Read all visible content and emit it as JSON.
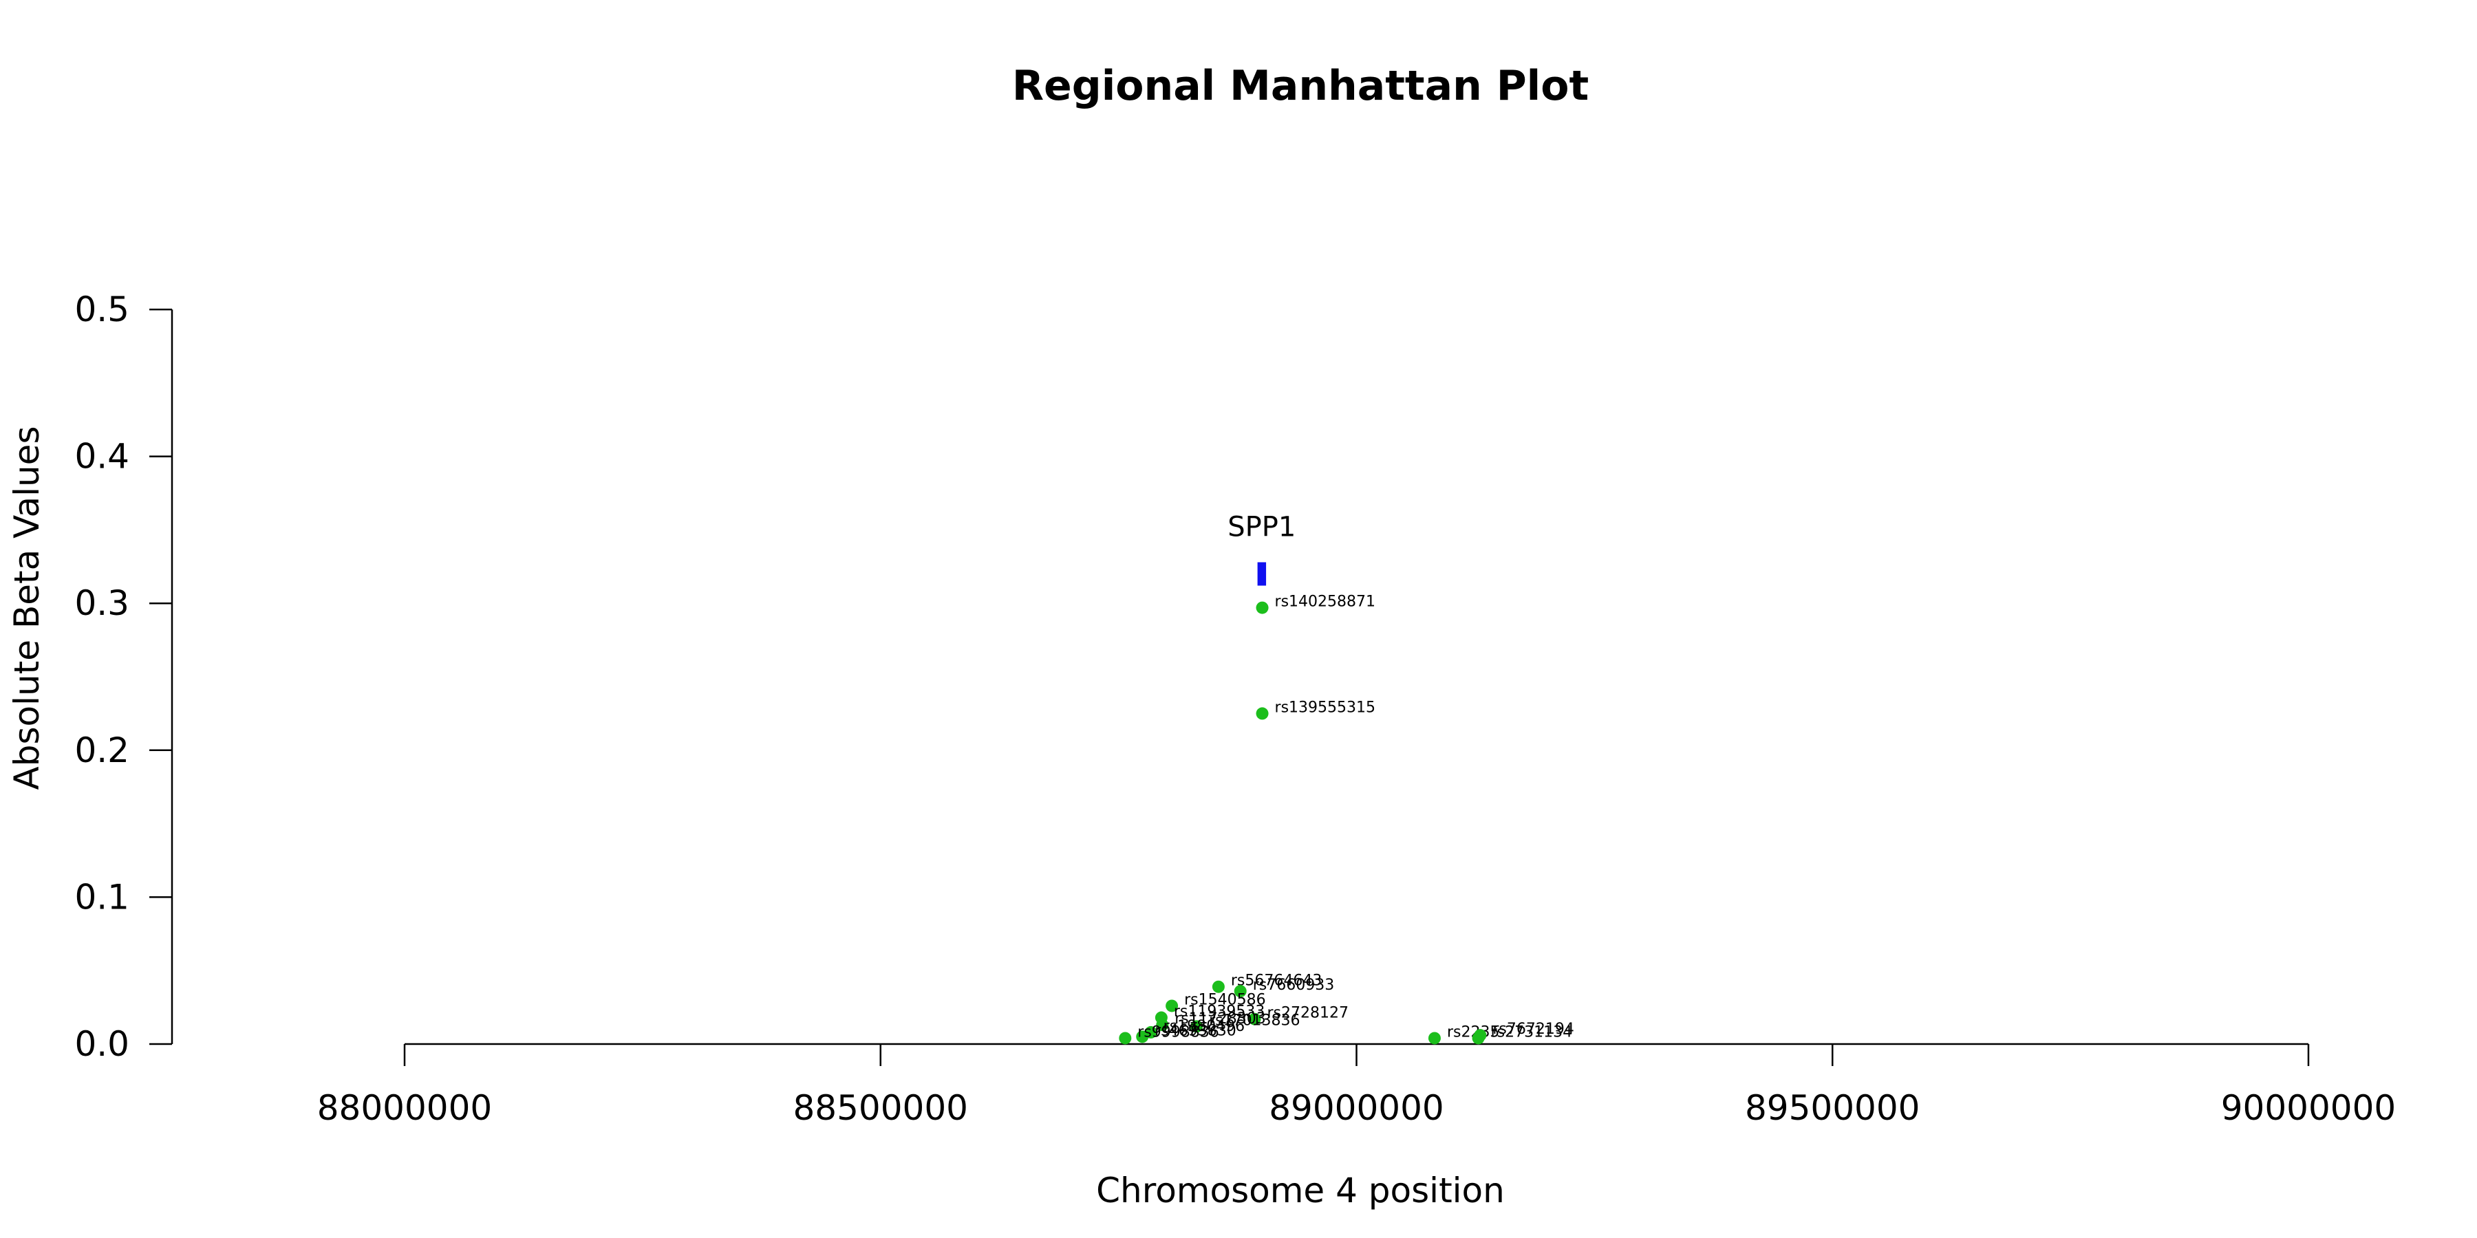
{
  "chart_data": {
    "type": "scatter",
    "title": "Regional Manhattan Plot",
    "xlabel": "Chromosome 4 position",
    "ylabel": "Absolute Beta Values",
    "xlim": [
      88000000,
      90000000
    ],
    "ylim": [
      0,
      0.5
    ],
    "x_ticks": [
      88000000,
      88500000,
      89000000,
      89500000,
      90000000
    ],
    "x_tick_labels": [
      "88000000",
      "88500000",
      "89000000",
      "89500000",
      "90000000"
    ],
    "y_ticks": [
      0,
      0.1,
      0.2,
      0.3,
      0.4,
      0.5
    ],
    "y_tick_labels": [
      "0.0",
      "0.1",
      "0.2",
      "0.3",
      "0.4",
      "0.5"
    ],
    "grid": false,
    "point_color": "#1cbe1c",
    "gene_color": "#1010f0",
    "genes": [
      {
        "name": "SPP1",
        "start": 88896000,
        "end": 88905000,
        "y": 0.32
      }
    ],
    "points": [
      {
        "label": "rs140258871",
        "x": 88901000,
        "y": 0.297
      },
      {
        "label": "rs139555315",
        "x": 88901000,
        "y": 0.225
      },
      {
        "label": "rs56764643",
        "x": 88855000,
        "y": 0.039
      },
      {
        "label": "rs7660933",
        "x": 88878000,
        "y": 0.036
      },
      {
        "label": "rs1540586",
        "x": 88806000,
        "y": 0.026
      },
      {
        "label": "rs11939533",
        "x": 88795000,
        "y": 0.018
      },
      {
        "label": "rs2728127",
        "x": 88893000,
        "y": 0.017
      },
      {
        "label": "rs17013836",
        "x": 88832000,
        "y": 0.012
      },
      {
        "label": "rs11728303",
        "x": 88796000,
        "y": 0.013
      },
      {
        "label": "rs1980496",
        "x": 88784000,
        "y": 0.008
      },
      {
        "label": "rs4693830",
        "x": 88775000,
        "y": 0.005
      },
      {
        "label": "rs9998836",
        "x": 88757000,
        "y": 0.004
      },
      {
        "label": "rs2235",
        "x": 89082000,
        "y": 0.004
      },
      {
        "label": "rs2731134",
        "x": 89128000,
        "y": 0.004
      },
      {
        "label": "rs7672194",
        "x": 89130000,
        "y": 0.006
      }
    ]
  }
}
